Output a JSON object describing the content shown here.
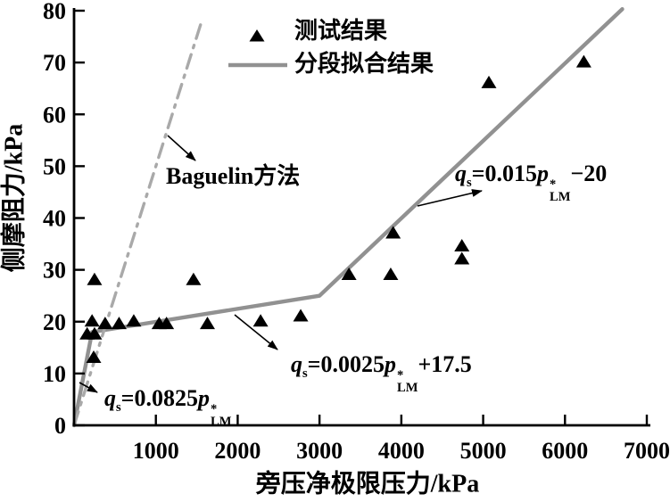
{
  "figure": {
    "legend": {
      "items": [
        {
          "marker": "triangle",
          "label": "测试结果"
        },
        {
          "marker": "line",
          "label": "分段拟合结果"
        }
      ]
    },
    "baguelin_label": "Baguelin方法"
  },
  "equations": {
    "q_symbol": "q",
    "q_sub": "s",
    "p_symbol": "p",
    "p_sup": "*",
    "p_sub": "LM",
    "seg_low": {
      "mid": "=0.0825",
      "tail": ""
    },
    "seg_mid": {
      "mid": "=0.0025",
      "tail": "+17.5"
    },
    "seg_high": {
      "mid": "=0.015",
      "tail": "−20"
    }
  },
  "chart_data": {
    "type": "scatter",
    "title": "",
    "xlabel": "旁压净极限压力/kPa",
    "ylabel": "侧摩阻力/kPa",
    "xlim": [
      0,
      7000
    ],
    "ylim": [
      0,
      80
    ],
    "xticks": [
      1000,
      2000,
      3000,
      4000,
      5000,
      6000,
      7000
    ],
    "yticks": [
      0,
      10,
      20,
      30,
      40,
      50,
      60,
      70,
      80
    ],
    "grid": false,
    "legend_position": "top-center-inside",
    "colors": {
      "marker": "#000000",
      "fit_line": "#919191",
      "baguelin_line": "#a9a9a9"
    },
    "series": [
      {
        "name": "测试结果",
        "type": "scatter",
        "marker": "triangle",
        "color": "#000000",
        "points": [
          [
            160,
            17.5
          ],
          [
            220,
            20
          ],
          [
            240,
            13
          ],
          [
            250,
            17.5
          ],
          [
            250,
            28
          ],
          [
            380,
            19.5
          ],
          [
            550,
            19.5
          ],
          [
            730,
            20
          ],
          [
            1040,
            19.5
          ],
          [
            1130,
            19.5
          ],
          [
            1460,
            28
          ],
          [
            1630,
            19.5
          ],
          [
            2280,
            20
          ],
          [
            2770,
            21
          ],
          [
            3360,
            29
          ],
          [
            3870,
            29
          ],
          [
            3900,
            37
          ],
          [
            4740,
            32
          ],
          [
            4740,
            34.5
          ],
          [
            5070,
            66
          ],
          [
            6230,
            70
          ]
        ]
      },
      {
        "name": "分段拟合结果",
        "type": "line",
        "linestyle": "solid",
        "color": "#919191",
        "points": [
          [
            0,
            0
          ],
          [
            220,
            18
          ],
          [
            3000,
            25
          ],
          [
            6700,
            80.3
          ]
        ]
      },
      {
        "name": "Baguelin方法",
        "type": "line",
        "linestyle": "dashdot",
        "color": "#a9a9a9",
        "points": [
          [
            0,
            0
          ],
          [
            1570,
            78.5
          ]
        ]
      }
    ],
    "annotations": [
      {
        "text": "Baguelin方法",
        "target": "dashdot-line"
      },
      {
        "text": "qs=0.015p*LM−20",
        "target": "fit segment p>3000"
      },
      {
        "text": "qs=0.0025p*LM+17.5",
        "target": "fit segment 220<p<3000"
      },
      {
        "text": "qs=0.0825p*LM",
        "target": "fit segment p<220"
      }
    ]
  }
}
